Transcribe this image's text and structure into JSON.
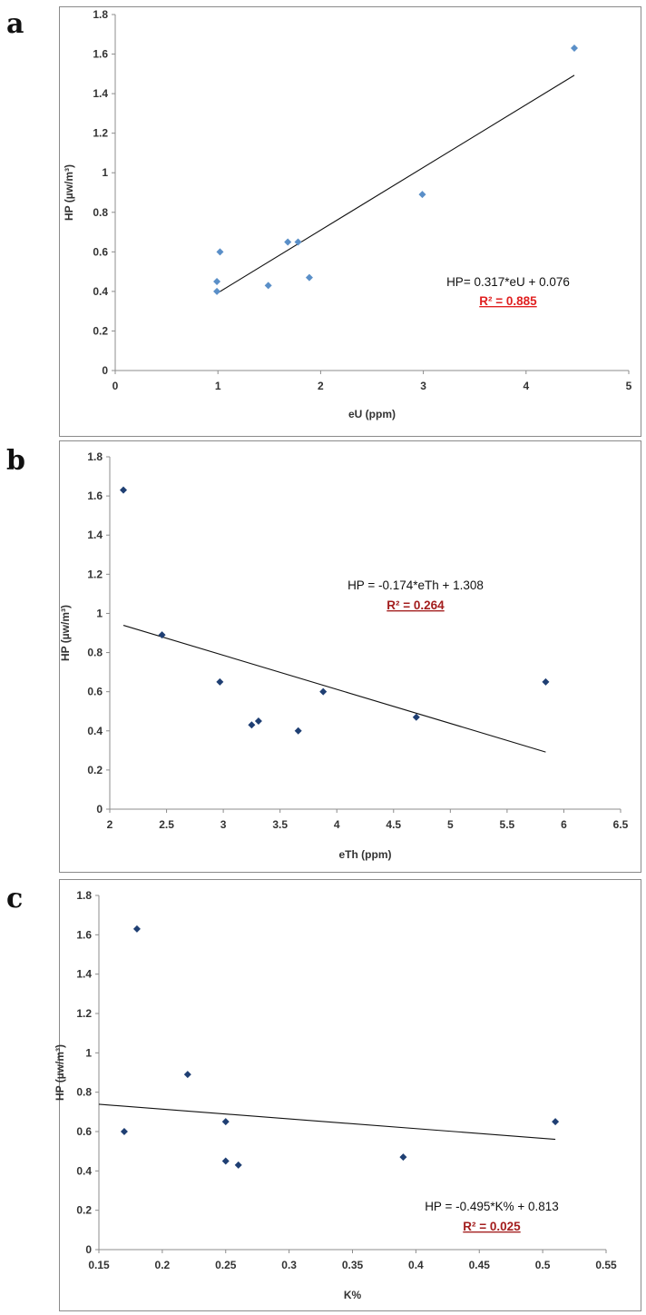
{
  "chart_data": [
    {
      "panel": "a",
      "type": "scatter",
      "xlabel": "eU (ppm)",
      "ylabel": "HP (µw/m³)",
      "xlim": [
        0,
        5
      ],
      "ylim": [
        0,
        1.8
      ],
      "xticks": [
        "0",
        "1",
        "2",
        "3",
        "4",
        "5"
      ],
      "yticks": [
        "0",
        "0.2",
        "0.4",
        "0.6",
        "0.8",
        "1",
        "1.2",
        "1.4",
        "1.6",
        "1.8"
      ],
      "grid": false,
      "points": [
        {
          "x": 0.99,
          "y": 0.4
        },
        {
          "x": 0.99,
          "y": 0.45
        },
        {
          "x": 1.02,
          "y": 0.6
        },
        {
          "x": 1.49,
          "y": 0.43
        },
        {
          "x": 1.68,
          "y": 0.65
        },
        {
          "x": 1.78,
          "y": 0.65
        },
        {
          "x": 1.89,
          "y": 0.47
        },
        {
          "x": 2.99,
          "y": 0.89
        },
        {
          "x": 4.47,
          "y": 1.63
        }
      ],
      "trendline": {
        "slope": 0.317,
        "intercept": 0.076,
        "x_from": 0.99,
        "x_to": 4.47
      },
      "equation": "HP= 0.317*eU + 0.076",
      "r2": "R² = 0.885",
      "marker_color": "#5a8fc8",
      "r2_color": "#e02020"
    },
    {
      "panel": "b",
      "type": "scatter",
      "xlabel": "eTh (ppm)",
      "ylabel": "HP (µw/m³)",
      "xlim": [
        2,
        6.5
      ],
      "ylim": [
        0,
        1.8
      ],
      "xticks": [
        "2",
        "2.5",
        "3",
        "3.5",
        "4",
        "4.5",
        "5",
        "5.5",
        "6",
        "6.5"
      ],
      "yticks": [
        "0",
        "0.2",
        "0.4",
        "0.6",
        "0.8",
        "1",
        "1.2",
        "1.4",
        "1.6",
        "1.8"
      ],
      "grid": false,
      "points": [
        {
          "x": 2.12,
          "y": 1.63
        },
        {
          "x": 2.46,
          "y": 0.89
        },
        {
          "x": 2.97,
          "y": 0.65
        },
        {
          "x": 3.25,
          "y": 0.43
        },
        {
          "x": 3.31,
          "y": 0.45
        },
        {
          "x": 3.66,
          "y": 0.4
        },
        {
          "x": 3.88,
          "y": 0.6
        },
        {
          "x": 4.7,
          "y": 0.47
        },
        {
          "x": 5.84,
          "y": 0.65
        }
      ],
      "trendline": {
        "slope": -0.174,
        "intercept": 1.308,
        "x_from": 2.12,
        "x_to": 5.84
      },
      "equation": "HP = -0.174*eTh + 1.308",
      "r2": "R² = 0.264",
      "marker_color": "#1f3f73",
      "r2_color": "#a31d1d"
    },
    {
      "panel": "c",
      "type": "scatter",
      "xlabel": "K%",
      "ylabel": "HP (µw/m³)",
      "xlim": [
        0.15,
        0.55
      ],
      "ylim": [
        0,
        1.8
      ],
      "xticks": [
        "0.15",
        "0.2",
        "0.25",
        "0.3",
        "0.35",
        "0.4",
        "0.45",
        "0.5",
        "0.55"
      ],
      "yticks": [
        "0",
        "0.2",
        "0.4",
        "0.6",
        "0.8",
        "1",
        "1.2",
        "1.4",
        "1.6",
        "1.8"
      ],
      "grid": false,
      "points": [
        {
          "x": 0.17,
          "y": 0.6
        },
        {
          "x": 0.18,
          "y": 1.63
        },
        {
          "x": 0.22,
          "y": 0.89
        },
        {
          "x": 0.25,
          "y": 0.65
        },
        {
          "x": 0.25,
          "y": 0.45
        },
        {
          "x": 0.26,
          "y": 0.43
        },
        {
          "x": 0.39,
          "y": 0.47
        },
        {
          "x": 0.51,
          "y": 0.65
        }
      ],
      "trendline": {
        "slope": -0.495,
        "intercept": 0.813,
        "x_from": 0.15,
        "x_to": 0.51
      },
      "equation": "HP = -0.495*K% + 0.813",
      "r2": "R² = 0.025",
      "marker_color": "#1f3f73",
      "r2_color": "#a31d1d"
    }
  ]
}
